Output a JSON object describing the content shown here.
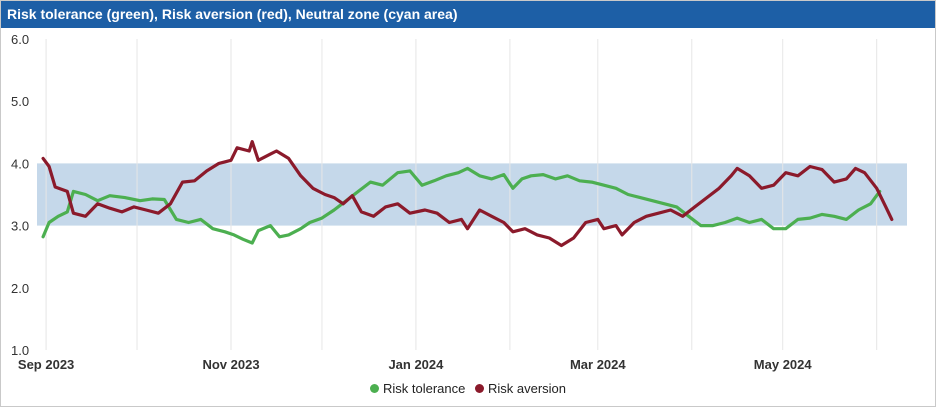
{
  "title": "Risk tolerance (green), Risk aversion (red), Neutral zone (cyan area)",
  "chart_data": {
    "type": "line",
    "title": "Risk tolerance (green), Risk aversion (red), Neutral zone (cyan area)",
    "xlabel": "",
    "ylabel": "",
    "ylim": [
      1.0,
      6.0
    ],
    "yticks": [
      "1.0",
      "2.0",
      "3.0",
      "4.0",
      "5.0",
      "6.0"
    ],
    "xlim": [
      "2023-08-29",
      "2024-06-11"
    ],
    "xticks": [
      {
        "label": "Sep 2023",
        "date": "2023-09-01"
      },
      {
        "label": "Nov 2023",
        "date": "2023-11-01"
      },
      {
        "label": "Jan 2024",
        "date": "2024-01-01"
      },
      {
        "label": "Mar 2024",
        "date": "2024-03-01"
      },
      {
        "label": "May 2024",
        "date": "2024-05-01"
      }
    ],
    "grid": "vertical",
    "band": {
      "name": "Neutral zone",
      "y_from": 3.0,
      "y_to": 4.0,
      "color": "#c5d8ea"
    },
    "legend_position": "bottom-center",
    "series": [
      {
        "name": "Risk tolerance",
        "color": "#4caf50",
        "points": [
          [
            "2023-08-31",
            2.82
          ],
          [
            "2023-09-02",
            3.05
          ],
          [
            "2023-09-05",
            3.15
          ],
          [
            "2023-09-08",
            3.22
          ],
          [
            "2023-09-10",
            3.55
          ],
          [
            "2023-09-14",
            3.5
          ],
          [
            "2023-09-18",
            3.4
          ],
          [
            "2023-09-22",
            3.48
          ],
          [
            "2023-09-27",
            3.45
          ],
          [
            "2023-10-02",
            3.4
          ],
          [
            "2023-10-06",
            3.43
          ],
          [
            "2023-10-10",
            3.42
          ],
          [
            "2023-10-14",
            3.1
          ],
          [
            "2023-10-18",
            3.05
          ],
          [
            "2023-10-22",
            3.1
          ],
          [
            "2023-10-26",
            2.95
          ],
          [
            "2023-10-30",
            2.9
          ],
          [
            "2023-11-02",
            2.85
          ],
          [
            "2023-11-05",
            2.78
          ],
          [
            "2023-11-08",
            2.72
          ],
          [
            "2023-11-10",
            2.92
          ],
          [
            "2023-11-14",
            3.0
          ],
          [
            "2023-11-17",
            2.82
          ],
          [
            "2023-11-20",
            2.85
          ],
          [
            "2023-11-24",
            2.95
          ],
          [
            "2023-11-27",
            3.05
          ],
          [
            "2023-12-01",
            3.12
          ],
          [
            "2023-12-05",
            3.25
          ],
          [
            "2023-12-09",
            3.4
          ],
          [
            "2023-12-13",
            3.55
          ],
          [
            "2023-12-17",
            3.7
          ],
          [
            "2023-12-21",
            3.65
          ],
          [
            "2023-12-26",
            3.85
          ],
          [
            "2023-12-30",
            3.88
          ],
          [
            "2024-01-03",
            3.65
          ],
          [
            "2024-01-07",
            3.72
          ],
          [
            "2024-01-11",
            3.8
          ],
          [
            "2024-01-15",
            3.85
          ],
          [
            "2024-01-18",
            3.92
          ],
          [
            "2024-01-22",
            3.8
          ],
          [
            "2024-01-26",
            3.75
          ],
          [
            "2024-01-30",
            3.82
          ],
          [
            "2024-02-02",
            3.6
          ],
          [
            "2024-02-05",
            3.75
          ],
          [
            "2024-02-08",
            3.8
          ],
          [
            "2024-02-12",
            3.82
          ],
          [
            "2024-02-16",
            3.75
          ],
          [
            "2024-02-20",
            3.8
          ],
          [
            "2024-02-24",
            3.72
          ],
          [
            "2024-02-28",
            3.7
          ],
          [
            "2024-03-03",
            3.65
          ],
          [
            "2024-03-07",
            3.6
          ],
          [
            "2024-03-11",
            3.5
          ],
          [
            "2024-03-15",
            3.45
          ],
          [
            "2024-03-19",
            3.4
          ],
          [
            "2024-03-23",
            3.35
          ],
          [
            "2024-03-27",
            3.3
          ],
          [
            "2024-03-31",
            3.15
          ],
          [
            "2024-04-04",
            3.0
          ],
          [
            "2024-04-08",
            3.0
          ],
          [
            "2024-04-12",
            3.05
          ],
          [
            "2024-04-16",
            3.12
          ],
          [
            "2024-04-20",
            3.05
          ],
          [
            "2024-04-24",
            3.1
          ],
          [
            "2024-04-28",
            2.95
          ],
          [
            "2024-05-02",
            2.95
          ],
          [
            "2024-05-06",
            3.1
          ],
          [
            "2024-05-10",
            3.12
          ],
          [
            "2024-05-14",
            3.18
          ],
          [
            "2024-05-18",
            3.15
          ],
          [
            "2024-05-22",
            3.1
          ],
          [
            "2024-05-26",
            3.25
          ],
          [
            "2024-05-30",
            3.35
          ],
          [
            "2024-06-02",
            3.55
          ]
        ]
      },
      {
        "name": "Risk aversion",
        "color": "#8b1a2b",
        "points": [
          [
            "2023-08-31",
            4.08
          ],
          [
            "2023-09-02",
            3.95
          ],
          [
            "2023-09-04",
            3.62
          ],
          [
            "2023-09-08",
            3.55
          ],
          [
            "2023-09-10",
            3.2
          ],
          [
            "2023-09-14",
            3.15
          ],
          [
            "2023-09-18",
            3.35
          ],
          [
            "2023-09-22",
            3.28
          ],
          [
            "2023-09-26",
            3.22
          ],
          [
            "2023-09-30",
            3.3
          ],
          [
            "2023-10-04",
            3.25
          ],
          [
            "2023-10-08",
            3.2
          ],
          [
            "2023-10-12",
            3.35
          ],
          [
            "2023-10-16",
            3.7
          ],
          [
            "2023-10-20",
            3.72
          ],
          [
            "2023-10-24",
            3.88
          ],
          [
            "2023-10-28",
            4.0
          ],
          [
            "2023-11-01",
            4.05
          ],
          [
            "2023-11-03",
            4.25
          ],
          [
            "2023-11-07",
            4.2
          ],
          [
            "2023-11-08",
            4.35
          ],
          [
            "2023-11-10",
            4.05
          ],
          [
            "2023-11-14",
            4.15
          ],
          [
            "2023-11-16",
            4.2
          ],
          [
            "2023-11-20",
            4.08
          ],
          [
            "2023-11-24",
            3.8
          ],
          [
            "2023-11-28",
            3.6
          ],
          [
            "2023-12-02",
            3.5
          ],
          [
            "2023-12-05",
            3.45
          ],
          [
            "2023-12-08",
            3.35
          ],
          [
            "2023-12-11",
            3.48
          ],
          [
            "2023-12-14",
            3.22
          ],
          [
            "2023-12-18",
            3.15
          ],
          [
            "2023-12-22",
            3.3
          ],
          [
            "2023-12-26",
            3.35
          ],
          [
            "2023-12-30",
            3.2
          ],
          [
            "2024-01-04",
            3.25
          ],
          [
            "2024-01-08",
            3.2
          ],
          [
            "2024-01-12",
            3.05
          ],
          [
            "2024-01-16",
            3.1
          ],
          [
            "2024-01-18",
            2.95
          ],
          [
            "2024-01-22",
            3.25
          ],
          [
            "2024-01-26",
            3.15
          ],
          [
            "2024-01-30",
            3.05
          ],
          [
            "2024-02-02",
            2.9
          ],
          [
            "2024-02-06",
            2.95
          ],
          [
            "2024-02-10",
            2.85
          ],
          [
            "2024-02-14",
            2.8
          ],
          [
            "2024-02-18",
            2.68
          ],
          [
            "2024-02-22",
            2.8
          ],
          [
            "2024-02-26",
            3.05
          ],
          [
            "2024-03-01",
            3.1
          ],
          [
            "2024-03-03",
            2.95
          ],
          [
            "2024-03-07",
            3.0
          ],
          [
            "2024-03-09",
            2.85
          ],
          [
            "2024-03-13",
            3.05
          ],
          [
            "2024-03-17",
            3.15
          ],
          [
            "2024-03-21",
            3.2
          ],
          [
            "2024-03-25",
            3.25
          ],
          [
            "2024-03-29",
            3.15
          ],
          [
            "2024-04-02",
            3.3
          ],
          [
            "2024-04-06",
            3.45
          ],
          [
            "2024-04-10",
            3.6
          ],
          [
            "2024-04-14",
            3.8
          ],
          [
            "2024-04-16",
            3.92
          ],
          [
            "2024-04-20",
            3.8
          ],
          [
            "2024-04-24",
            3.6
          ],
          [
            "2024-04-28",
            3.65
          ],
          [
            "2024-05-02",
            3.85
          ],
          [
            "2024-05-06",
            3.8
          ],
          [
            "2024-05-10",
            3.95
          ],
          [
            "2024-05-14",
            3.9
          ],
          [
            "2024-05-18",
            3.7
          ],
          [
            "2024-05-22",
            3.75
          ],
          [
            "2024-05-25",
            3.92
          ],
          [
            "2024-05-28",
            3.85
          ],
          [
            "2024-06-01",
            3.6
          ],
          [
            "2024-06-04",
            3.3
          ],
          [
            "2024-06-06",
            3.1
          ]
        ]
      }
    ]
  }
}
